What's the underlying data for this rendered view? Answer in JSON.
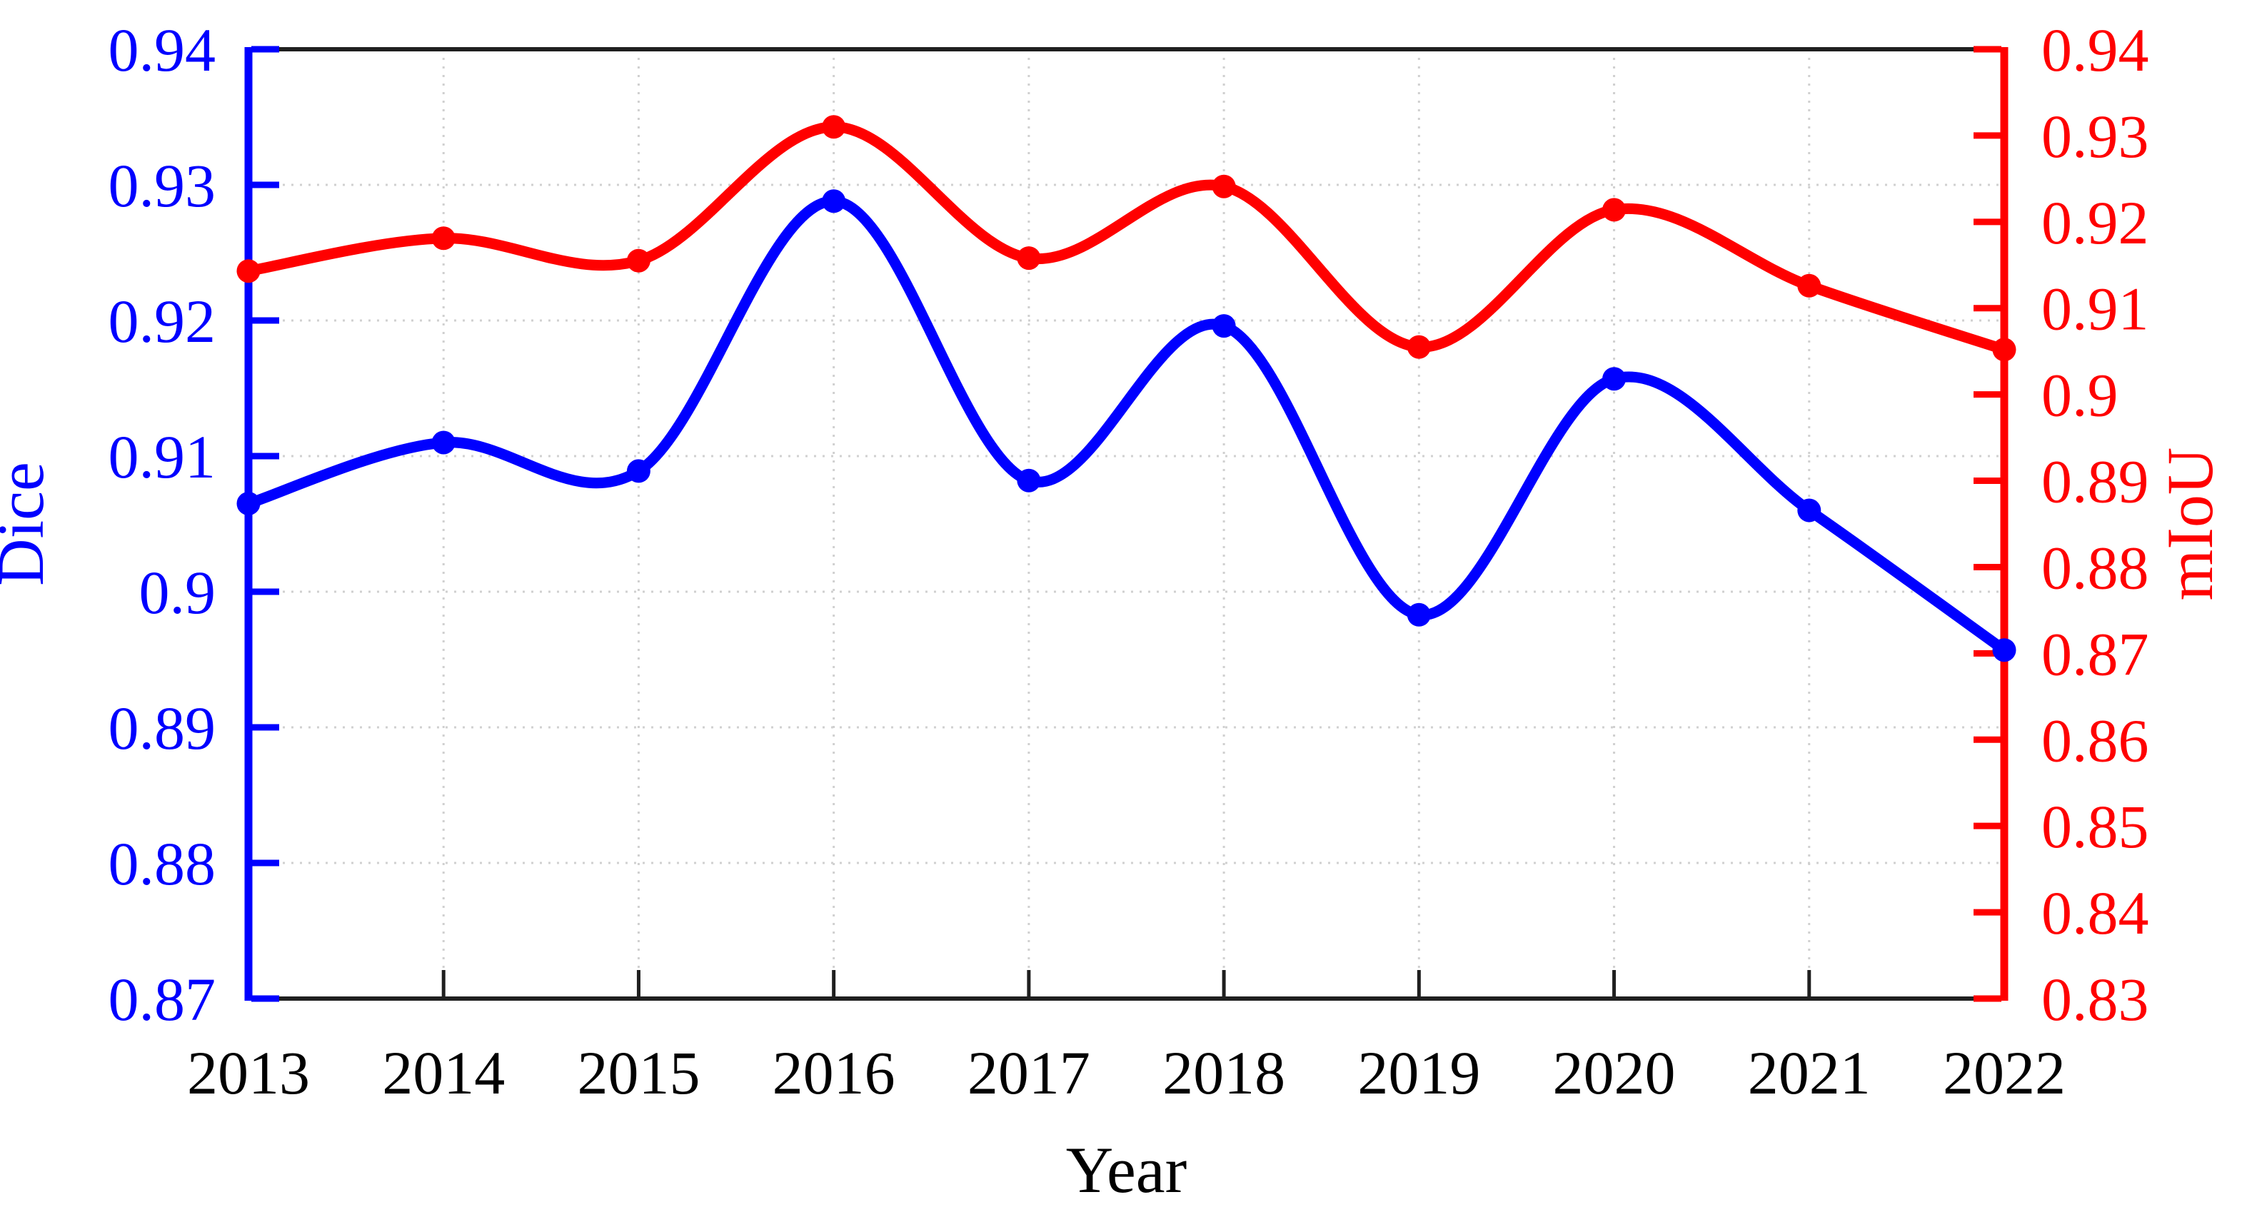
{
  "figure": {
    "x_axis_title": "Year",
    "left_axis_title": "Dice",
    "right_axis_title": "mIoU"
  },
  "colors": {
    "dice_blue": "#0000ff",
    "miou_red": "#ff0000",
    "frame_black": "#1f1f1f",
    "grid_gray": "#d0d0d0",
    "text_black": "#000000",
    "background": "#ffffff"
  },
  "chart_data": {
    "type": "line",
    "x": [
      2013,
      2014,
      2015,
      2016,
      2017,
      2018,
      2019,
      2020,
      2021,
      2022
    ],
    "x_tick_labels": [
      "2013",
      "2014",
      "2015",
      "2016",
      "2017",
      "2018",
      "2019",
      "2020",
      "2021",
      "2022"
    ],
    "xlabel": "Year",
    "series": [
      {
        "name": "Dice",
        "axis": "left",
        "color": "#0000ff",
        "marker": "circle",
        "line_style": "smooth-spline",
        "values": [
          0.9065,
          0.911,
          0.9089,
          0.9288,
          0.9082,
          0.9196,
          0.8983,
          0.9157,
          0.906,
          0.8957
        ]
      },
      {
        "name": "mIoU",
        "axis": "right",
        "color": "#ff0000",
        "marker": "circle",
        "line_style": "smooth-spline",
        "values": [
          0.9143,
          0.9181,
          0.9155,
          0.931,
          0.9158,
          0.9241,
          0.9055,
          0.9214,
          0.9126,
          0.9052
        ]
      }
    ],
    "left_axis": {
      "label": "Dice",
      "min": 0.87,
      "max": 0.94,
      "tick_step": 0.01,
      "tick_labels": [
        "0.94",
        "0.93",
        "0.92",
        "0.91",
        "0.9",
        "0.89",
        "0.88",
        "0.87"
      ],
      "color": "#0000ff"
    },
    "right_axis": {
      "label": "mIoU",
      "min": 0.83,
      "max": 0.94,
      "tick_step": 0.01,
      "tick_labels": [
        "0.94",
        "0.93",
        "0.92",
        "0.91",
        "0.9",
        "0.89",
        "0.88",
        "0.87",
        "0.86",
        "0.85",
        "0.84",
        "0.83"
      ],
      "color": "#ff0000"
    },
    "grid": {
      "horizontal": "dotted lines at left-axis ticks 0.88-0.93",
      "vertical": "dotted lines at years 2014-2021",
      "style": "dotted",
      "color": "#d0d0d0"
    },
    "legend": "none"
  }
}
